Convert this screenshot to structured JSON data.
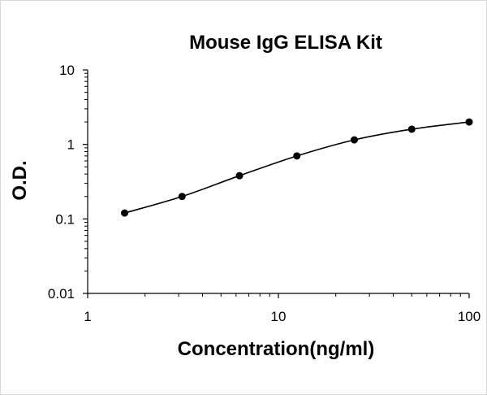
{
  "chart_data": {
    "type": "scatter",
    "title": "Mouse IgG ELISA Kit",
    "xlabel": "Concentration(ng/ml)",
    "ylabel": "O.D.",
    "x_scale": "log",
    "y_scale": "log",
    "xlim": [
      1,
      100
    ],
    "ylim": [
      0.01,
      10
    ],
    "x_ticks": [
      "1",
      "10",
      "100"
    ],
    "y_ticks": [
      "0.01",
      "0.1",
      "1",
      "10"
    ],
    "grid": false,
    "legend": "none",
    "colors": {
      "marker": "#000000",
      "line": "#000000"
    },
    "series": [
      {
        "x": [
          1.5625,
          3.125,
          6.25,
          12.5,
          25,
          50,
          100
        ],
        "y": [
          0.12,
          0.2,
          0.38,
          0.7,
          1.15,
          1.6,
          2.0
        ]
      }
    ]
  }
}
